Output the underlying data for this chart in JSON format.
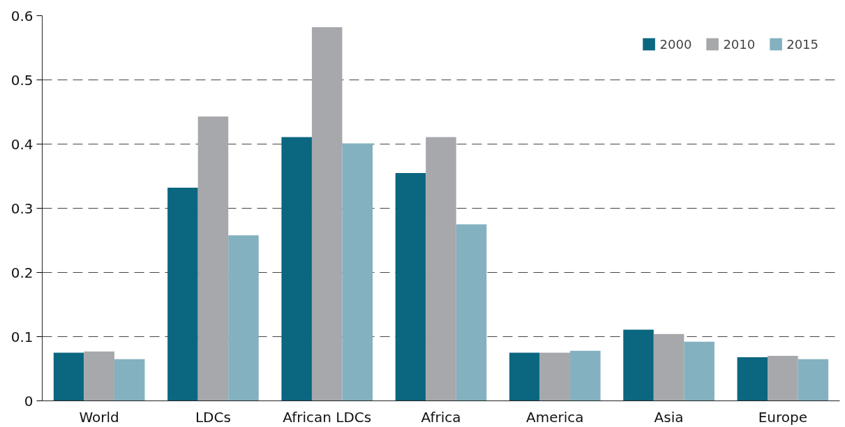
{
  "chart_data": {
    "type": "bar",
    "categories": [
      "World",
      "LDCs",
      "African LDCs",
      "Africa",
      "America",
      "Asia",
      "Europe"
    ],
    "series": [
      {
        "name": "2000",
        "color": "#0b6680",
        "values": [
          0.075,
          0.332,
          0.411,
          0.355,
          0.075,
          0.111,
          0.068
        ]
      },
      {
        "name": "2010",
        "color": "#a7a8ac",
        "values": [
          0.077,
          0.443,
          0.582,
          0.411,
          0.075,
          0.104,
          0.07
        ]
      },
      {
        "name": "2015",
        "color": "#83b1bf",
        "values": [
          0.065,
          0.258,
          0.401,
          0.275,
          0.078,
          0.092,
          0.065
        ]
      }
    ],
    "ylim": [
      0,
      0.6
    ],
    "yticks": [
      0,
      0.1,
      0.2,
      0.3,
      0.4,
      0.5,
      0.6
    ],
    "grid": "y",
    "legend": "top right"
  }
}
